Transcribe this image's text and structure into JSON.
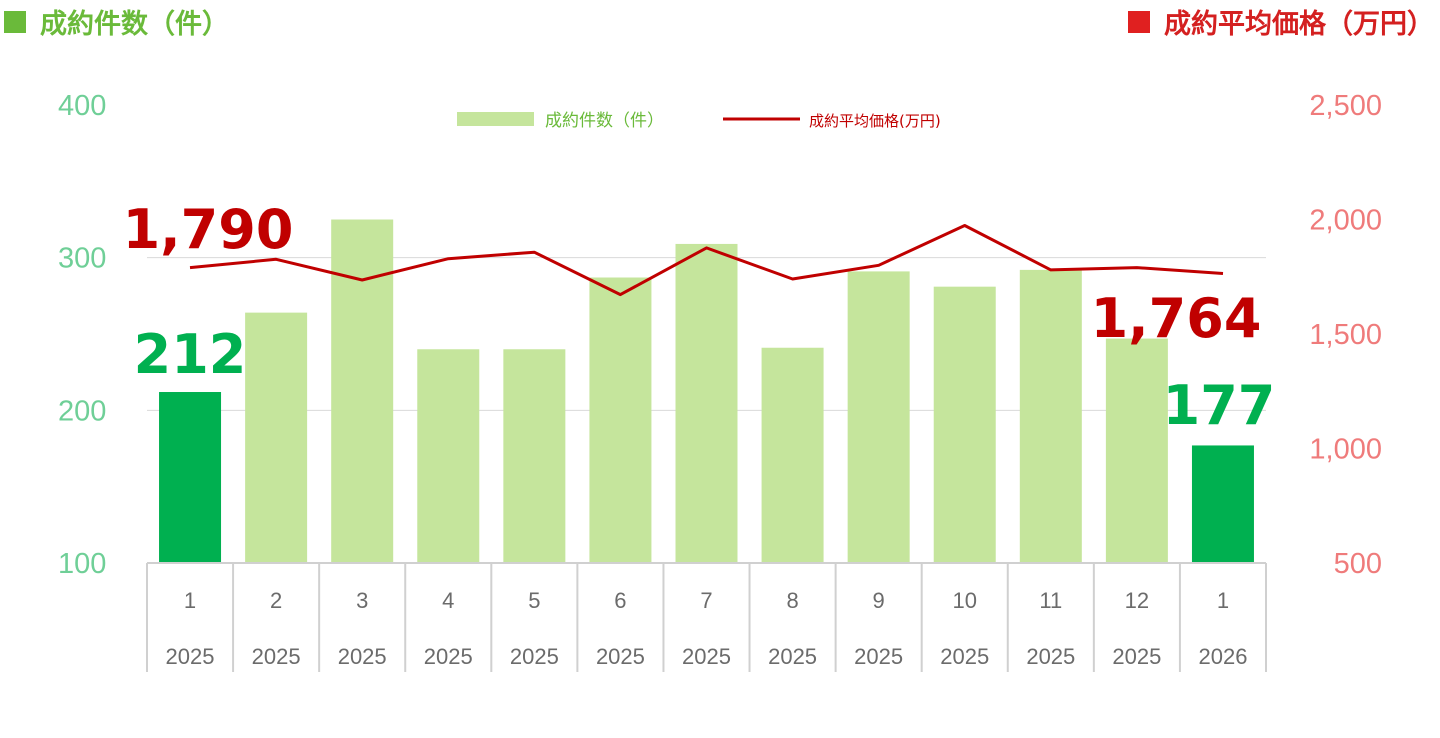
{
  "titles": {
    "left": "成約件数（件）",
    "right": "成約平均価格（万円）"
  },
  "colors": {
    "bar": "#c5e59c",
    "bar_highlight": "#00b050",
    "line": "#c00000",
    "left_title": "#6aba3a",
    "right_title": "#e02020"
  },
  "chart_data": {
    "type": "bar",
    "categories": [
      "1",
      "2",
      "3",
      "4",
      "5",
      "6",
      "7",
      "8",
      "9",
      "10",
      "11",
      "12",
      "1"
    ],
    "years": [
      "2025",
      "2025",
      "2025",
      "2025",
      "2025",
      "2025",
      "2025",
      "2025",
      "2025",
      "2025",
      "2025",
      "2025",
      "2026"
    ],
    "series": [
      {
        "name": "成約件数（件）",
        "type": "bar",
        "axis": "left",
        "values": [
          212,
          264,
          325,
          240,
          240,
          287,
          309,
          241,
          291,
          281,
          292,
          247,
          177
        ],
        "highlight": [
          0,
          12
        ]
      },
      {
        "name": "成約平均価格(万円)",
        "type": "line",
        "axis": "right",
        "values": [
          1790,
          1826,
          1736,
          1829,
          1857,
          1672,
          1876,
          1740,
          1800,
          1974,
          1780,
          1790,
          1764
        ]
      }
    ],
    "left_axis": {
      "ylim": [
        100,
        400
      ],
      "ticks": [
        "100",
        "200",
        "300",
        "400"
      ]
    },
    "right_axis": {
      "ylim": [
        500,
        2500
      ],
      "ticks": [
        "500",
        "1,000",
        "1,500",
        "2,000",
        "2,500"
      ]
    },
    "grid": true,
    "legend": "top-center",
    "annotations": {
      "price_first": "1,790",
      "price_last": "1,764",
      "count_first": "212",
      "count_last": "177"
    }
  }
}
